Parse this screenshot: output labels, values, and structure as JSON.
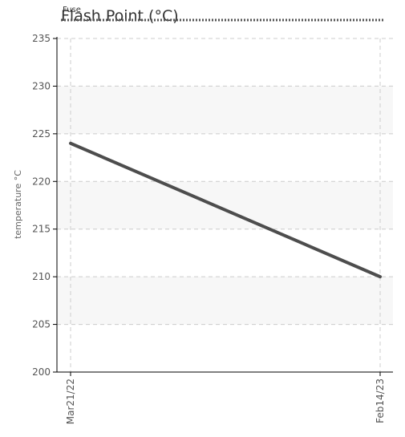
{
  "chart_data": {
    "type": "line",
    "title": "Flash Point (°C)",
    "title_overlap_text": "Fuse",
    "ylabel": "temperature °C",
    "xlabel": "",
    "ylim": [
      200,
      235
    ],
    "yticks": [
      200,
      205,
      210,
      215,
      220,
      225,
      230,
      235
    ],
    "categories": [
      "Mar21/22",
      "Feb14/23"
    ],
    "series": [
      {
        "values": [
          224,
          210
        ]
      }
    ],
    "grid": true,
    "legend": "none",
    "colors": {
      "line": "#4d4d4d",
      "band": "#f7f7f7",
      "grid": "#cccccc",
      "axis": "#000000",
      "title_underline": "#555555"
    }
  }
}
